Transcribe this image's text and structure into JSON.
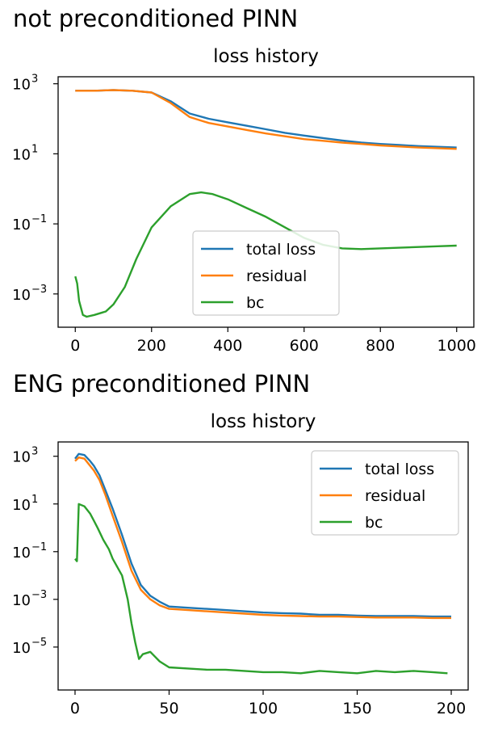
{
  "figures": [
    {
      "heading": "not preconditioned PINN",
      "chart_data": {
        "type": "line",
        "title": "loss history",
        "xlabel": "",
        "ylabel": "",
        "y_scale": "log",
        "xlim": [
          -45,
          1045
        ],
        "ylim_log10": [
          -3.95,
          3.2
        ],
        "xticks": [
          0,
          200,
          400,
          600,
          800,
          1000
        ],
        "yticks_log10": [
          3,
          1,
          -1,
          -3
        ],
        "legend": {
          "placement": "lower-center",
          "entries": [
            "total loss",
            "residual",
            "bc"
          ]
        },
        "grid": false,
        "series": [
          {
            "name": "total loss",
            "color": "#1f77b4",
            "x": [
              0,
              50,
              100,
              150,
              200,
              250,
              300,
              350,
              400,
              450,
              500,
              550,
              600,
              650,
              700,
              750,
              800,
              850,
              900,
              950,
              1000
            ],
            "log10_y": [
              2.8,
              2.8,
              2.82,
              2.8,
              2.75,
              2.5,
              2.15,
              2.0,
              1.9,
              1.8,
              1.7,
              1.6,
              1.52,
              1.45,
              1.38,
              1.32,
              1.28,
              1.25,
              1.22,
              1.2,
              1.18
            ]
          },
          {
            "name": "residual",
            "color": "#ff7f0e",
            "x": [
              0,
              50,
              100,
              150,
              200,
              250,
              300,
              350,
              400,
              450,
              500,
              550,
              600,
              650,
              700,
              750,
              800,
              850,
              900,
              950,
              1000
            ],
            "log10_y": [
              2.8,
              2.8,
              2.82,
              2.8,
              2.75,
              2.45,
              2.05,
              1.88,
              1.78,
              1.68,
              1.58,
              1.5,
              1.42,
              1.37,
              1.32,
              1.28,
              1.24,
              1.21,
              1.18,
              1.16,
              1.14
            ]
          },
          {
            "name": "bc",
            "color": "#2ca02c",
            "x": [
              0,
              5,
              10,
              20,
              30,
              50,
              80,
              100,
              130,
              160,
              200,
              250,
              300,
              330,
              360,
              400,
              450,
              500,
              550,
              600,
              650,
              700,
              750,
              800,
              850,
              900,
              950,
              1000
            ],
            "log10_y": [
              -2.5,
              -2.7,
              -3.2,
              -3.6,
              -3.65,
              -3.6,
              -3.5,
              -3.3,
              -2.8,
              -2.0,
              -1.1,
              -0.5,
              -0.15,
              -0.1,
              -0.15,
              -0.3,
              -0.55,
              -0.8,
              -1.1,
              -1.4,
              -1.6,
              -1.7,
              -1.72,
              -1.7,
              -1.68,
              -1.66,
              -1.64,
              -1.62
            ]
          }
        ]
      }
    },
    {
      "heading": "ENG preconditioned PINN",
      "chart_data": {
        "type": "line",
        "title": "loss history",
        "xlabel": "",
        "ylabel": "",
        "y_scale": "log",
        "xlim": [
          -9,
          209
        ],
        "ylim_log10": [
          -6.8,
          3.6
        ],
        "xticks": [
          0,
          50,
          100,
          150,
          200
        ],
        "yticks_log10": [
          3,
          1,
          -1,
          -3,
          -5
        ],
        "legend": {
          "placement": "upper-right",
          "entries": [
            "total loss",
            "residual",
            "bc"
          ]
        },
        "grid": false,
        "series": [
          {
            "name": "total loss",
            "color": "#1f77b4",
            "x": [
              0,
              2,
              5,
              8,
              10,
              13,
              16,
              20,
              25,
              30,
              35,
              40,
              45,
              50,
              60,
              70,
              80,
              90,
              100,
              110,
              120,
              130,
              140,
              150,
              160,
              170,
              180,
              190,
              200
            ],
            "log10_y": [
              2.9,
              3.1,
              3.05,
              2.8,
              2.6,
              2.2,
              1.6,
              0.8,
              -0.3,
              -1.5,
              -2.4,
              -2.85,
              -3.1,
              -3.3,
              -3.35,
              -3.4,
              -3.45,
              -3.5,
              -3.55,
              -3.58,
              -3.6,
              -3.65,
              -3.65,
              -3.68,
              -3.7,
              -3.7,
              -3.7,
              -3.72,
              -3.72
            ]
          },
          {
            "name": "residual",
            "color": "#ff7f0e",
            "x": [
              0,
              2,
              5,
              8,
              10,
              13,
              16,
              20,
              25,
              30,
              35,
              40,
              45,
              50,
              60,
              70,
              80,
              90,
              100,
              110,
              120,
              130,
              140,
              150,
              160,
              170,
              180,
              190,
              200
            ],
            "log10_y": [
              2.8,
              2.95,
              2.9,
              2.6,
              2.4,
              2.0,
              1.4,
              0.5,
              -0.6,
              -1.8,
              -2.6,
              -3.0,
              -3.25,
              -3.4,
              -3.45,
              -3.5,
              -3.55,
              -3.6,
              -3.65,
              -3.68,
              -3.7,
              -3.72,
              -3.72,
              -3.74,
              -3.76,
              -3.76,
              -3.76,
              -3.78,
              -3.78
            ]
          },
          {
            "name": "bc",
            "color": "#2ca02c",
            "x": [
              0,
              1,
              2,
              5,
              8,
              10,
              12,
              15,
              18,
              20,
              25,
              28,
              30,
              32,
              34,
              36,
              40,
              45,
              50,
              60,
              70,
              80,
              90,
              100,
              110,
              120,
              130,
              140,
              150,
              160,
              170,
              180,
              190,
              198
            ],
            "log10_y": [
              -1.3,
              -1.4,
              1.0,
              0.9,
              0.6,
              0.3,
              0.0,
              -0.5,
              -0.9,
              -1.3,
              -2.0,
              -3.0,
              -4.0,
              -4.8,
              -5.5,
              -5.3,
              -5.2,
              -5.6,
              -5.85,
              -5.9,
              -5.95,
              -5.95,
              -6.0,
              -6.05,
              -6.05,
              -6.1,
              -6.0,
              -6.05,
              -6.1,
              -6.0,
              -6.05,
              -6.0,
              -6.05,
              -6.1
            ]
          }
        ]
      }
    }
  ]
}
